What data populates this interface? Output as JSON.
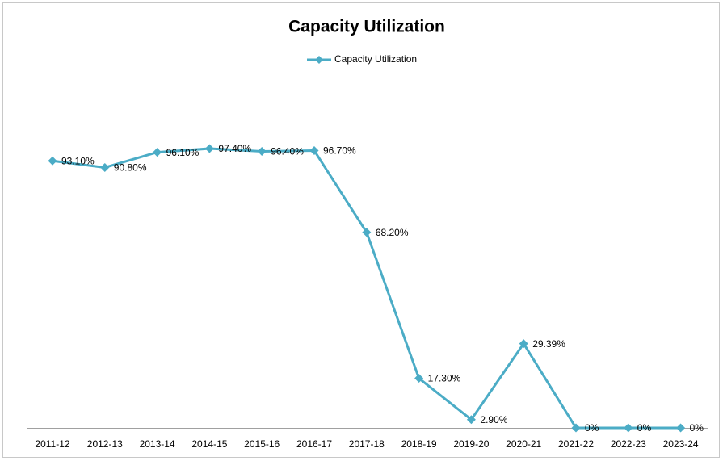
{
  "chart_data": {
    "type": "line",
    "title": "Capacity Utilization",
    "categories": [
      "2011-12",
      "2012-13",
      "2013-14",
      "2014-15",
      "2015-16",
      "2016-17",
      "2017-18",
      "2018-19",
      "2019-20",
      "2020-21",
      "2021-22",
      "2022-23",
      "2023-24"
    ],
    "series": [
      {
        "name": "Capacity Utilization",
        "color": "#4bacc6",
        "values": [
          93.1,
          90.8,
          96.1,
          97.4,
          96.4,
          96.7,
          68.2,
          17.3,
          2.9,
          29.39,
          0,
          0,
          0
        ],
        "value_labels": [
          "93.10%",
          "90.80%",
          "96.10%",
          "97.40%",
          "96.40%",
          "96.70%",
          "68.20%",
          "17.30%",
          "2.90%",
          "29.39%",
          "0%",
          "0%",
          "0%"
        ]
      }
    ],
    "legend": "top"
  }
}
